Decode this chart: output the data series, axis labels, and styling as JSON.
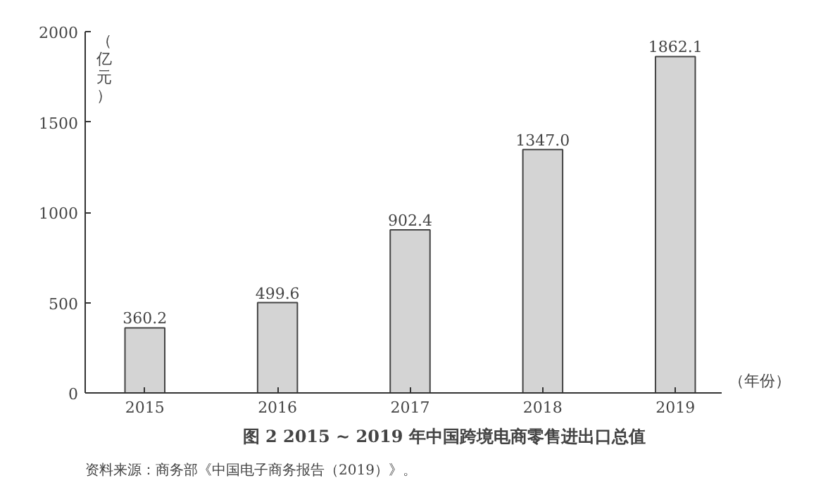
{
  "chart_data": {
    "type": "bar",
    "title": "图 2   2015 ~ 2019 年中国跨境电商零售进出口总值",
    "ylabel": "（亿元）",
    "xlabel": "（年份）",
    "categories": [
      "2015",
      "2016",
      "2017",
      "2018",
      "2019"
    ],
    "values": [
      360.2,
      499.6,
      902.4,
      1347.0,
      1862.1
    ],
    "value_labels": [
      "360.2",
      "499.6",
      "902.4",
      "1347.0",
      "1862.1"
    ],
    "color": "#d4d4d4",
    "ylim": [
      0,
      2000
    ],
    "yticks": [
      0,
      500,
      1000,
      1500,
      2000
    ],
    "annotations": [
      "资料来源：商务部《中国电子商务报告（2019）》。"
    ]
  }
}
